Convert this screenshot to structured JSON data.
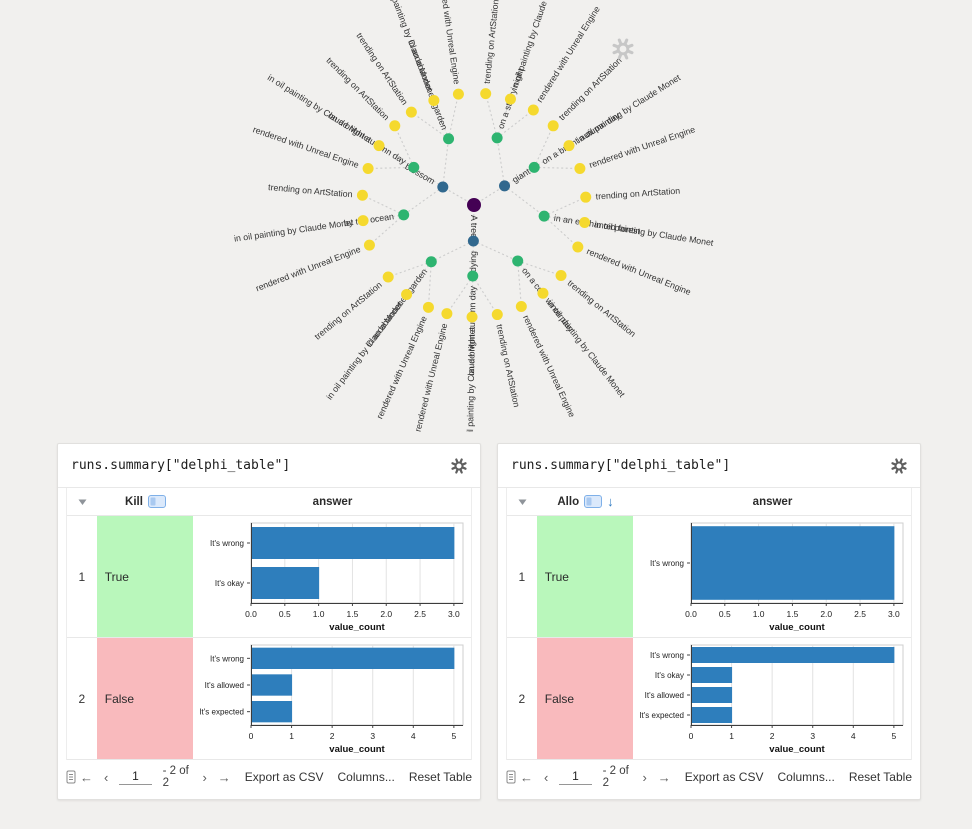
{
  "page": {
    "background": "#f1f0ee"
  },
  "icons": {
    "first_page": "←",
    "prev_page": "‹",
    "next_page": "›",
    "last_page": "→",
    "sort_desc": "↓"
  },
  "tree_panel": {
    "node_colors": {
      "depth0": "#440154",
      "depth1": "#31688e",
      "depth2": "#2eb470",
      "depth3": "#f5d92e"
    },
    "edge_color": "#cccccc",
    "root": {
      "label": "A tree",
      "angle": 90,
      "children": [
        {
          "label": "blossom",
          "angle": -150,
          "children": [
            {
              "label": "in an abandoned garden",
              "angle": -111,
              "children": [
                {
                  "label": "trending on ArtStation",
                  "angle": -124
                },
                {
                  "label": "in oil painting by Claude Monet",
                  "angle": -111
                },
                {
                  "label": "rendered with Unreal Engine",
                  "angle": -98
                }
              ]
            },
            {
              "label": "on a bright autumn day",
              "angle": -148,
              "children": [
                {
                  "label": "rendered with Unreal Engine",
                  "angle": -161
                },
                {
                  "label": "in oil painting by Claude Monet",
                  "angle": -148
                },
                {
                  "label": "trending on ArtStation",
                  "angle": -135
                }
              ]
            },
            {
              "label": "by the ocean",
              "angle": 172,
              "children": [
                {
                  "label": "rendered with Unreal Engine",
                  "angle": 159
                },
                {
                  "label": "in oil painting by Claude Monet",
                  "angle": 172
                },
                {
                  "label": "trending on ArtStation",
                  "angle": 185
                }
              ]
            }
          ]
        },
        {
          "label": "giant",
          "angle": -32,
          "children": [
            {
              "label": "on a starry night",
              "angle": -71,
              "children": [
                {
                  "label": "trending on ArtStation",
                  "angle": -84
                },
                {
                  "label": "in oil painting by Claude Monet",
                  "angle": -71
                },
                {
                  "label": "rendered with Unreal Engine",
                  "angle": -58
                }
              ]
            },
            {
              "label": "on a bright autumn day",
              "angle": -32,
              "children": [
                {
                  "label": "trending on ArtStation",
                  "angle": -45
                },
                {
                  "label": "in oil painting by Claude Monet",
                  "angle": -32
                },
                {
                  "label": "rendered with Unreal Engine",
                  "angle": -19
                }
              ]
            },
            {
              "label": "in an enchanted forest",
              "angle": 9,
              "children": [
                {
                  "label": "trending on ArtStation",
                  "angle": -4
                },
                {
                  "label": "in oil painting by Claude Monet",
                  "angle": 9
                },
                {
                  "label": "rendered with Unreal Engine",
                  "angle": 22
                }
              ]
            }
          ]
        },
        {
          "label": "dying",
          "angle": 91,
          "children": [
            {
              "label": "on a cold winter day",
              "angle": 52,
              "children": [
                {
                  "label": "trending on ArtStation",
                  "angle": 39
                },
                {
                  "label": "in oil painting by Claude Monet",
                  "angle": 52
                },
                {
                  "label": "rendered with Unreal Engine",
                  "angle": 65
                }
              ]
            },
            {
              "label": "on a bright autumn day",
              "angle": 91,
              "children": [
                {
                  "label": "trending on ArtStation",
                  "angle": 78
                },
                {
                  "label": "in oil painting by Claude Monet",
                  "angle": 91
                },
                {
                  "label": "rendered with Unreal Engine",
                  "angle": 104
                }
              ]
            },
            {
              "label": "in an abandoned garden",
              "angle": 127,
              "children": [
                {
                  "label": "rendered with Unreal Engine",
                  "angle": 114
                },
                {
                  "label": "in oil painting by Claude Monet",
                  "angle": 127
                },
                {
                  "label": "trending on ArtStation",
                  "angle": 140
                }
              ]
            }
          ]
        }
      ]
    }
  },
  "chart_data": [
    {
      "type": "bar",
      "panel": "left",
      "row": "True",
      "categories": [
        "It's wrong",
        "It's okay"
      ],
      "values": [
        3,
        1
      ],
      "xlabel": "value_count",
      "xlim": [
        0,
        3
      ],
      "bar_color": "#2e7ebc",
      "xticks": {
        "values": [
          0,
          0.5,
          1,
          1.5,
          2,
          2.5,
          3
        ],
        "labels": [
          "0.0",
          "0.5",
          "1.0",
          "1.5",
          "2.0",
          "2.5",
          "3.0"
        ]
      }
    },
    {
      "type": "bar",
      "panel": "left",
      "row": "False",
      "categories": [
        "It's wrong",
        "It's allowed",
        "It's expected"
      ],
      "values": [
        5,
        1,
        1
      ],
      "xlabel": "value_count",
      "xlim": [
        0,
        5
      ],
      "bar_color": "#2e7ebc",
      "xticks": {
        "values": [
          0,
          1,
          2,
          3,
          4,
          5
        ],
        "labels": [
          "0",
          "1",
          "2",
          "3",
          "4",
          "5"
        ]
      }
    },
    {
      "type": "bar",
      "panel": "right",
      "row": "True",
      "categories": [
        "It's wrong"
      ],
      "values": [
        3
      ],
      "xlabel": "value_count",
      "xlim": [
        0,
        3
      ],
      "bar_color": "#2e7ebc",
      "xticks": {
        "values": [
          0,
          0.5,
          1,
          1.5,
          2,
          2.5,
          3
        ],
        "labels": [
          "0.0",
          "0.5",
          "1.0",
          "1.5",
          "2.0",
          "2.5",
          "3.0"
        ]
      }
    },
    {
      "type": "bar",
      "panel": "right",
      "row": "False",
      "categories": [
        "It's wrong",
        "It's okay",
        "It's allowed",
        "It's expected"
      ],
      "values": [
        5,
        1,
        1,
        1
      ],
      "xlabel": "value_count",
      "xlim": [
        0,
        5
      ],
      "bar_color": "#2e7ebc",
      "xticks": {
        "values": [
          0,
          1,
          2,
          3,
          4,
          5
        ],
        "labels": [
          "0",
          "1",
          "2",
          "3",
          "4",
          "5"
        ]
      }
    }
  ],
  "panels": [
    {
      "title": "runs.summary[\"delphi_table\"]",
      "key_column": {
        "label": "Kill"
      },
      "answer_column": "answer",
      "rows": [
        {
          "index": "1",
          "value": "True",
          "cell_color": "#b9f7bb",
          "chart": 0
        },
        {
          "index": "2",
          "value": "False",
          "cell_color": "#f9babd",
          "chart": 1
        }
      ],
      "footer": {
        "page": "1",
        "range": "- 2 of 2",
        "export": "Export as CSV",
        "columns": "Columns...",
        "reset": "Reset Table"
      }
    },
    {
      "title": "runs.summary[\"delphi_table\"]",
      "key_column": {
        "label": "Allo"
      },
      "answer_column": "answer",
      "rows": [
        {
          "index": "1",
          "value": "True",
          "cell_color": "#b9f7bb",
          "chart": 2
        },
        {
          "index": "2",
          "value": "False",
          "cell_color": "#f9babd",
          "chart": 3
        }
      ],
      "footer": {
        "page": "1",
        "range": "- 2 of 2",
        "export": "Export as CSV",
        "columns": "Columns...",
        "reset": "Reset Table"
      }
    }
  ]
}
